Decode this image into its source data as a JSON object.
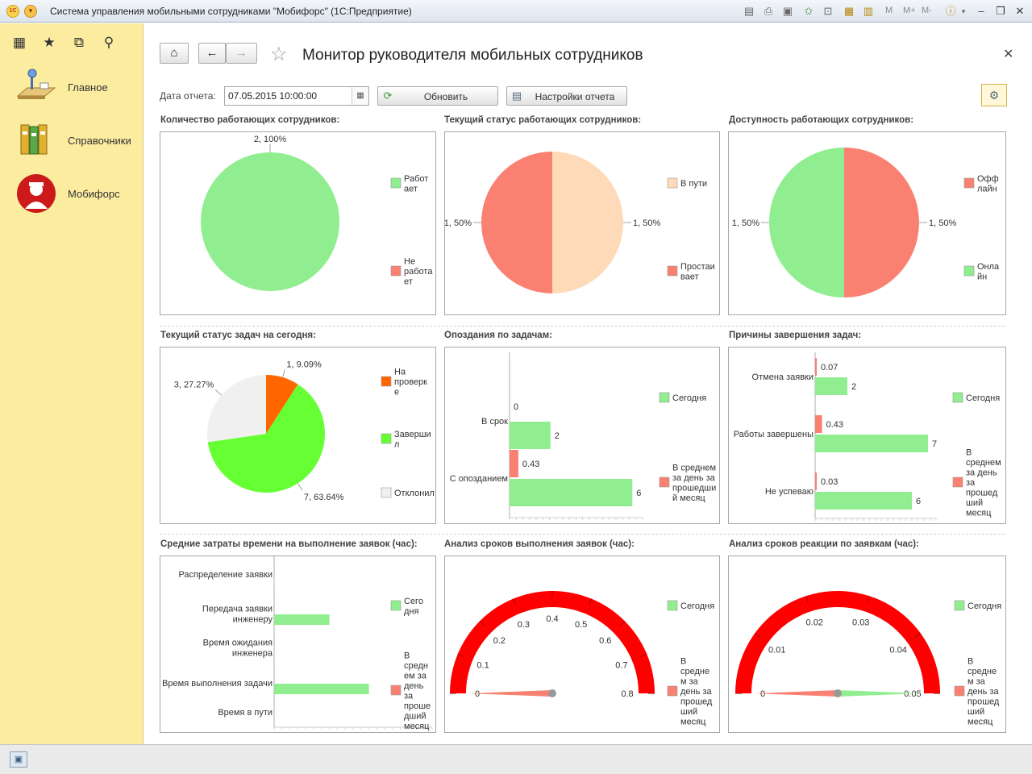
{
  "window": {
    "title": "Система управления мобильными сотрудниками \"Мобифорс\"  (1С:Предприятие)",
    "logo_text": "1С",
    "toolbar_m": [
      "M",
      "M+",
      "M-"
    ]
  },
  "sidebar": {
    "items": [
      {
        "label": "Главное",
        "icon": "home-desk-icon"
      },
      {
        "label": "Справочники",
        "icon": "folders-icon"
      },
      {
        "label": "Мобифорс",
        "icon": "worker-icon"
      }
    ]
  },
  "header": {
    "title": "Монитор руководителя мобильных сотрудников"
  },
  "controls": {
    "date_label": "Дата отчета:",
    "date_value": "07.05.2015 10:00:00",
    "refresh_label": "Обновить",
    "settings_label": "Настройки отчета"
  },
  "colors": {
    "green": "#90ee90",
    "salmon": "#fa8072",
    "peach": "#ffdab9",
    "orange": "#ff6600",
    "lime": "#66ff33",
    "lightgray": "#f0f0f0",
    "gauge_red": "#ff0000",
    "sidebar_bg": "#fbeca0"
  },
  "panels": {
    "p1": {
      "title": "Количество работающих сотрудников:",
      "chart_data": {
        "type": "pie",
        "slices": [
          {
            "name": "Работает",
            "value": 2,
            "label": "2, 100%",
            "color": "#90ee90"
          },
          {
            "name": "Не работает",
            "value": 0,
            "label": "",
            "color": "#fa8072"
          }
        ],
        "legend": [
          {
            "lines": [
              "Работ",
              "ает"
            ],
            "color": "#90ee90"
          },
          {
            "lines": [
              "Не",
              "работа",
              "ет"
            ],
            "color": "#fa8072"
          }
        ]
      }
    },
    "p2": {
      "title": "Текущий статус работающих сотрудников:",
      "chart_data": {
        "type": "pie",
        "slices": [
          {
            "name": "В пути",
            "value": 1,
            "label": "1, 50%",
            "color": "#ffdab9"
          },
          {
            "name": "Простаивает",
            "value": 1,
            "label": "1, 50%",
            "color": "#fa8072"
          }
        ],
        "legend": [
          {
            "lines": [
              "В пути"
            ],
            "color": "#ffdab9"
          },
          {
            "lines": [
              "Простаи",
              "вает"
            ],
            "color": "#fa8072"
          }
        ]
      }
    },
    "p3": {
      "title": "Доступность работающих сотрудников:",
      "chart_data": {
        "type": "pie",
        "slices": [
          {
            "name": "Оффлайн",
            "value": 1,
            "label": "1, 50%",
            "color": "#fa8072"
          },
          {
            "name": "Онлайн",
            "value": 1,
            "label": "1, 50%",
            "color": "#90ee90"
          }
        ],
        "legend": [
          {
            "lines": [
              "Офф",
              "лайн"
            ],
            "color": "#fa8072"
          },
          {
            "lines": [
              "Онла",
              "йн"
            ],
            "color": "#90ee90"
          }
        ]
      }
    },
    "p4": {
      "title": "Текущий статус задач на сегодня:",
      "chart_data": {
        "type": "pie",
        "slices": [
          {
            "name": "На проверке",
            "value": 1,
            "label": "1, 9.09%",
            "color": "#ff6600"
          },
          {
            "name": "Завершил",
            "value": 7,
            "label": "7, 63.64%",
            "color": "#66ff33"
          },
          {
            "name": "Отклонил",
            "value": 3,
            "label": "3, 27.27%",
            "color": "#f0f0f0"
          }
        ],
        "legend": [
          {
            "lines": [
              "На",
              "проверк",
              "е"
            ],
            "color": "#ff6600"
          },
          {
            "lines": [
              "Заверши",
              "л"
            ],
            "color": "#66ff33"
          },
          {
            "lines": [
              "Отклонил"
            ],
            "color": "#f0f0f0"
          }
        ]
      }
    },
    "p5": {
      "title": "Опоздания по задачам:",
      "chart_data": {
        "type": "bar",
        "orientation": "horizontal",
        "categories": [
          "В срок",
          "С опозданием"
        ],
        "series": [
          {
            "name": "Сегодня",
            "values": [
              2,
              6
            ],
            "labels": [
              "2",
              "6"
            ],
            "color": "#90ee90"
          },
          {
            "name": "В среднем за день за прошедший месяц",
            "values": [
              0,
              0.43
            ],
            "labels": [
              "0",
              "0.43"
            ],
            "color": "#fa8072"
          }
        ],
        "xlim": [
          0,
          6.5
        ],
        "legend": [
          {
            "lines": [
              "Сегодня"
            ],
            "color": "#90ee90"
          },
          {
            "lines": [
              "В среднем",
              "за день за",
              "прошедши",
              "й месяц"
            ],
            "color": "#fa8072"
          }
        ]
      }
    },
    "p6": {
      "title": "Причины завершения задач:",
      "chart_data": {
        "type": "bar",
        "orientation": "horizontal",
        "categories": [
          "Отмена заявки",
          "Работы завершены",
          "Не успеваю"
        ],
        "series": [
          {
            "name": "Сегодня",
            "values": [
              2,
              7,
              6
            ],
            "labels": [
              "2",
              "7",
              "6"
            ],
            "color": "#90ee90"
          },
          {
            "name": "В среднем за день за прошедший месяц",
            "values": [
              0.07,
              0.43,
              0.03
            ],
            "labels": [
              "0.07",
              "0.43",
              "0.03"
            ],
            "color": "#fa8072"
          }
        ],
        "xlim": [
          0,
          7.5
        ],
        "legend": [
          {
            "lines": [
              "Сегодня"
            ],
            "color": "#90ee90"
          },
          {
            "lines": [
              "В",
              "среднем",
              "за день",
              "за",
              "прошед",
              "ший",
              "месяц"
            ],
            "color": "#fa8072"
          }
        ]
      }
    },
    "p7": {
      "title": "Средние затраты времени на выполнение заявок (час):",
      "chart_data": {
        "type": "bar",
        "orientation": "horizontal",
        "categories": [
          [
            "Распределение заявки"
          ],
          [
            "Передача заявки",
            "инженеру"
          ],
          [
            "Время ожидания",
            "инженера"
          ],
          [
            "Время выполнения задачи"
          ],
          [
            "Время в пути"
          ]
        ],
        "series": [
          {
            "name": "Сегодня",
            "values": [
              0,
              0.7,
              0,
              1.2,
              0
            ],
            "color": "#90ee90"
          },
          {
            "name": "В среднем за день за прошедший месяц",
            "values": [
              0,
              0,
              0,
              0,
              0
            ],
            "color": "#fa8072"
          }
        ],
        "xlim": [
          0,
          2
        ],
        "legend": [
          {
            "lines": [
              "Сего",
              "дня"
            ],
            "color": "#90ee90"
          },
          {
            "lines": [
              "В",
              "средн",
              "ем за",
              "день",
              "за",
              "проше",
              "дший",
              "месяц"
            ],
            "color": "#fa8072"
          }
        ]
      }
    },
    "p8": {
      "title": "Анализ сроков выполнения заявок (час):",
      "chart_data": {
        "type": "gauge",
        "min": 0,
        "max": 0.8,
        "ticks": [
          "0",
          "0.1",
          "0.2",
          "0.3",
          "0.4",
          "0.5",
          "0.6",
          "0.7",
          "0.8"
        ],
        "needles": [
          {
            "name": "Сегодня",
            "value": 0,
            "color": "#90ee90"
          },
          {
            "name": "В среднем за день за прошедший месяц",
            "value": 0,
            "color": "#fa8072"
          }
        ],
        "legend": [
          {
            "lines": [
              "Сегодня"
            ],
            "color": "#90ee90"
          },
          {
            "lines": [
              "В",
              "средне",
              "м за",
              "день за",
              "прошед",
              "ший",
              "месяц"
            ],
            "color": "#fa8072"
          }
        ]
      }
    },
    "p9": {
      "title": "Анализ сроков реакции по заявкам (час):",
      "chart_data": {
        "type": "gauge",
        "min": 0,
        "max": 0.05,
        "ticks": [
          "0",
          "0.01",
          "0.02",
          "0.03",
          "0.04",
          "0.05"
        ],
        "needles": [
          {
            "name": "Сегодня",
            "value": 0.05,
            "color": "#90ee90"
          },
          {
            "name": "В среднем за день за прошедший месяц",
            "value": 0,
            "color": "#fa8072"
          }
        ],
        "legend": [
          {
            "lines": [
              "Сегодня"
            ],
            "color": "#90ee90"
          },
          {
            "lines": [
              "В",
              "средне",
              "м за",
              "день за",
              "прошед",
              "ший",
              "месяц"
            ],
            "color": "#fa8072"
          }
        ]
      }
    }
  }
}
